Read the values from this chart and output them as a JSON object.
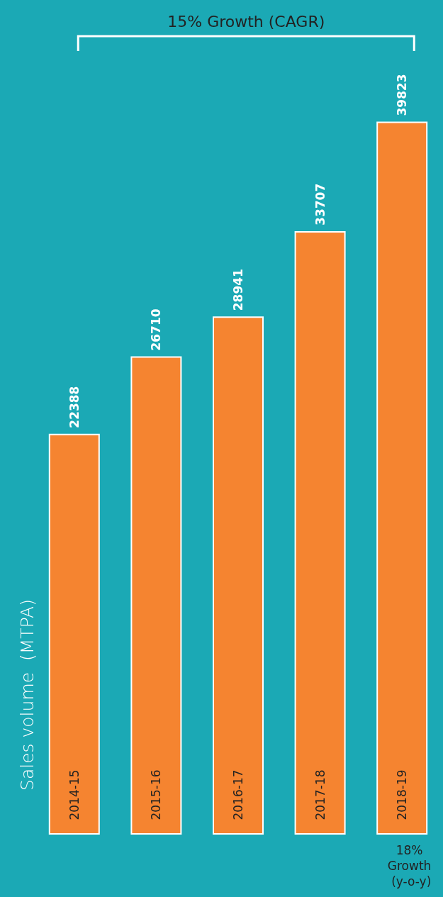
{
  "chart_data": {
    "type": "bar",
    "ylabel": "Sales volume  (MTPA)",
    "categories": [
      "2014-15",
      "2015-16",
      "2016-17",
      "2017-18",
      "2018-19"
    ],
    "values": [
      22388,
      26710,
      28941,
      33707,
      39823
    ],
    "color": "#f58430",
    "data_labels": true,
    "annotations": [
      "15% Growth (CAGR)",
      "18% Growth (y-o-y)"
    ]
  }
}
